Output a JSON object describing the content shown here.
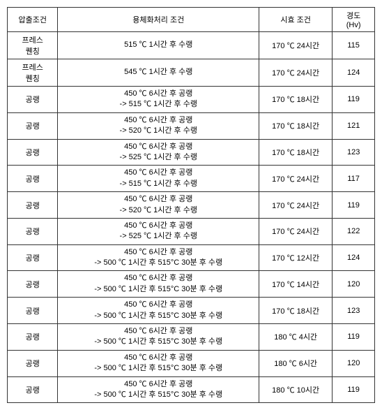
{
  "headers": {
    "col1": "압출조건",
    "col2": "용체화처리 조건",
    "col3": "시효 조건",
    "col4": "경도\n(Hv)"
  },
  "rows": [
    {
      "cond": "프레스\n퀜칭",
      "treat": "515 ℃  1시간 후 수랭",
      "aging": "170 ℃  24시간",
      "hv": "115"
    },
    {
      "cond": "프레스\n퀜칭",
      "treat": "545 ℃  1시간 후 수랭",
      "aging": "170 ℃  24시간",
      "hv": "124"
    },
    {
      "cond": "공랭",
      "treat": "450 ℃  6시간 후 공랭\n-> 515 ℃ 1시간 후 수랭",
      "aging": "170 ℃  18시간",
      "hv": "119"
    },
    {
      "cond": "공랭",
      "treat": "450 ℃  6시간 후 공랭\n-> 520 ℃ 1시간 후 수랭",
      "aging": "170 ℃  18시간",
      "hv": "121"
    },
    {
      "cond": "공랭",
      "treat": "450 ℃  6시간 후 공랭\n-> 525 ℃ 1시간 후 수랭",
      "aging": "170 ℃  18시간",
      "hv": "123"
    },
    {
      "cond": "공랭",
      "treat": "450 ℃  6시간 후 공랭\n-> 515 ℃ 1시간 후 수랭",
      "aging": "170 ℃  24시간",
      "hv": "117"
    },
    {
      "cond": "공랭",
      "treat": "450 ℃  6시간 후 공랭\n-> 520 ℃ 1시간 후 수랭",
      "aging": "170 ℃  24시간",
      "hv": "119"
    },
    {
      "cond": "공랭",
      "treat": "450 ℃  6시간 후 공랭\n-> 525 ℃ 1시간 후 수랭",
      "aging": "170 ℃  24시간",
      "hv": "122"
    },
    {
      "cond": "공랭",
      "treat": "450 ℃  6시간 후 공랭\n-> 500 ℃  1시간 후  515°C 30분 후 수랭",
      "aging": "170 ℃  12시간",
      "hv": "124"
    },
    {
      "cond": "공랭",
      "treat": "450 ℃  6시간 후 공랭\n-> 500 ℃  1시간 후  515°C 30분 후 수랭",
      "aging": "170 ℃  14시간",
      "hv": "120"
    },
    {
      "cond": "공랭",
      "treat": "450 ℃  6시간 후 공랭\n-> 500 ℃  1시간 후 515°C 30분 후 수랭",
      "aging": "170 ℃  18시간",
      "hv": "123"
    },
    {
      "cond": "공랭",
      "treat": "450 ℃  6시간 후 공랭\n-> 500 ℃  1시간 후  515°C 30분 후 수랭",
      "aging": "180 ℃  4시간",
      "hv": "119"
    },
    {
      "cond": "공랭",
      "treat": "450 ℃  6시간 후 공랭\n-> 500 ℃  1시간 후  515°C 30분 후 수랭",
      "aging": "180 ℃  6시간",
      "hv": "120"
    },
    {
      "cond": "공랭",
      "treat": "450 ℃  6시간 후 공랭\n-> 500 ℃  1시간 후  515°C 30분 후 수랭",
      "aging": "180 ℃  10시간",
      "hv": "119"
    }
  ]
}
